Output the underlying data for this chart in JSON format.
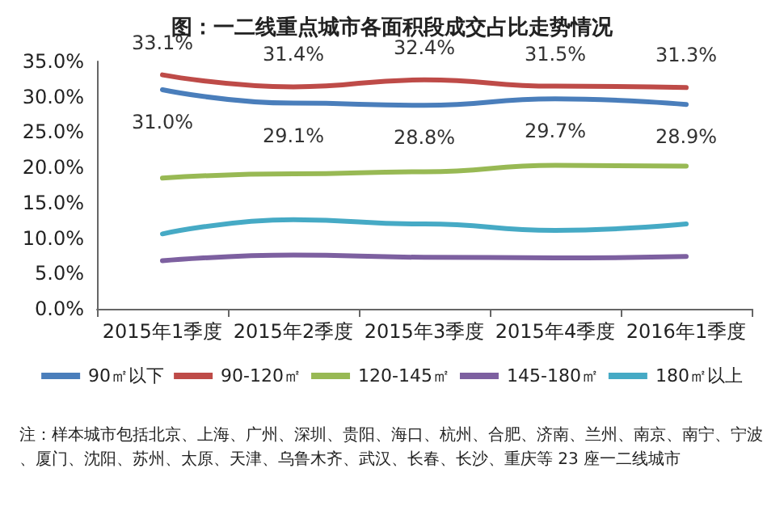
{
  "chart_data": {
    "type": "line",
    "title": "图：一二线重点城市各面积段成交占比走势情况",
    "categories": [
      "2015年1季度",
      "2015年2季度",
      "2015年3季度",
      "2015年4季度",
      "2016年1季度"
    ],
    "series": [
      {
        "name": "90㎡以下",
        "color": "#4a7ebb",
        "values": [
          31.0,
          29.1,
          28.8,
          29.7,
          28.9
        ],
        "value_labels": [
          "31.0%",
          "29.1%",
          "28.8%",
          "29.7%",
          "28.9%"
        ]
      },
      {
        "name": "90-120㎡",
        "color": "#be4b48",
        "values": [
          33.1,
          31.4,
          32.4,
          31.5,
          31.3
        ],
        "value_labels": [
          "33.1%",
          "31.4%",
          "32.4%",
          "31.5%",
          "31.3%"
        ]
      },
      {
        "name": "120-145㎡",
        "color": "#98b954",
        "values": [
          18.5,
          19.1,
          19.4,
          20.3,
          20.2
        ]
      },
      {
        "name": "145-180㎡",
        "color": "#7d60a0",
        "values": [
          6.8,
          7.6,
          7.3,
          7.2,
          7.4
        ]
      },
      {
        "name": "180㎡以上",
        "color": "#46aac5",
        "values": [
          10.6,
          12.6,
          12.0,
          11.1,
          12.0
        ]
      }
    ],
    "ylim": [
      0,
      35
    ],
    "yticks": [
      {
        "value": 0,
        "label": "0.0%"
      },
      {
        "value": 5,
        "label": "5.0%"
      },
      {
        "value": 10,
        "label": "10.0%"
      },
      {
        "value": 15,
        "label": "15.0%"
      },
      {
        "value": 20,
        "label": "20.0%"
      },
      {
        "value": 25,
        "label": "25.0%"
      },
      {
        "value": 30,
        "label": "30.0%"
      },
      {
        "value": 35,
        "label": "35.0%"
      }
    ],
    "grid": false,
    "legend": "bottom",
    "marker": "none",
    "line_style": "solid",
    "annotations": [
      "注：样本城市包括北京、上海、广州、深圳、贵阳、海口、杭州、合肥、济南、兰州、南京、南宁、宁波、厦门、沈阳、苏州、太原、天津、乌鲁木齐、武汉、长春、长沙、重庆等 23 座一二线城市"
    ]
  }
}
